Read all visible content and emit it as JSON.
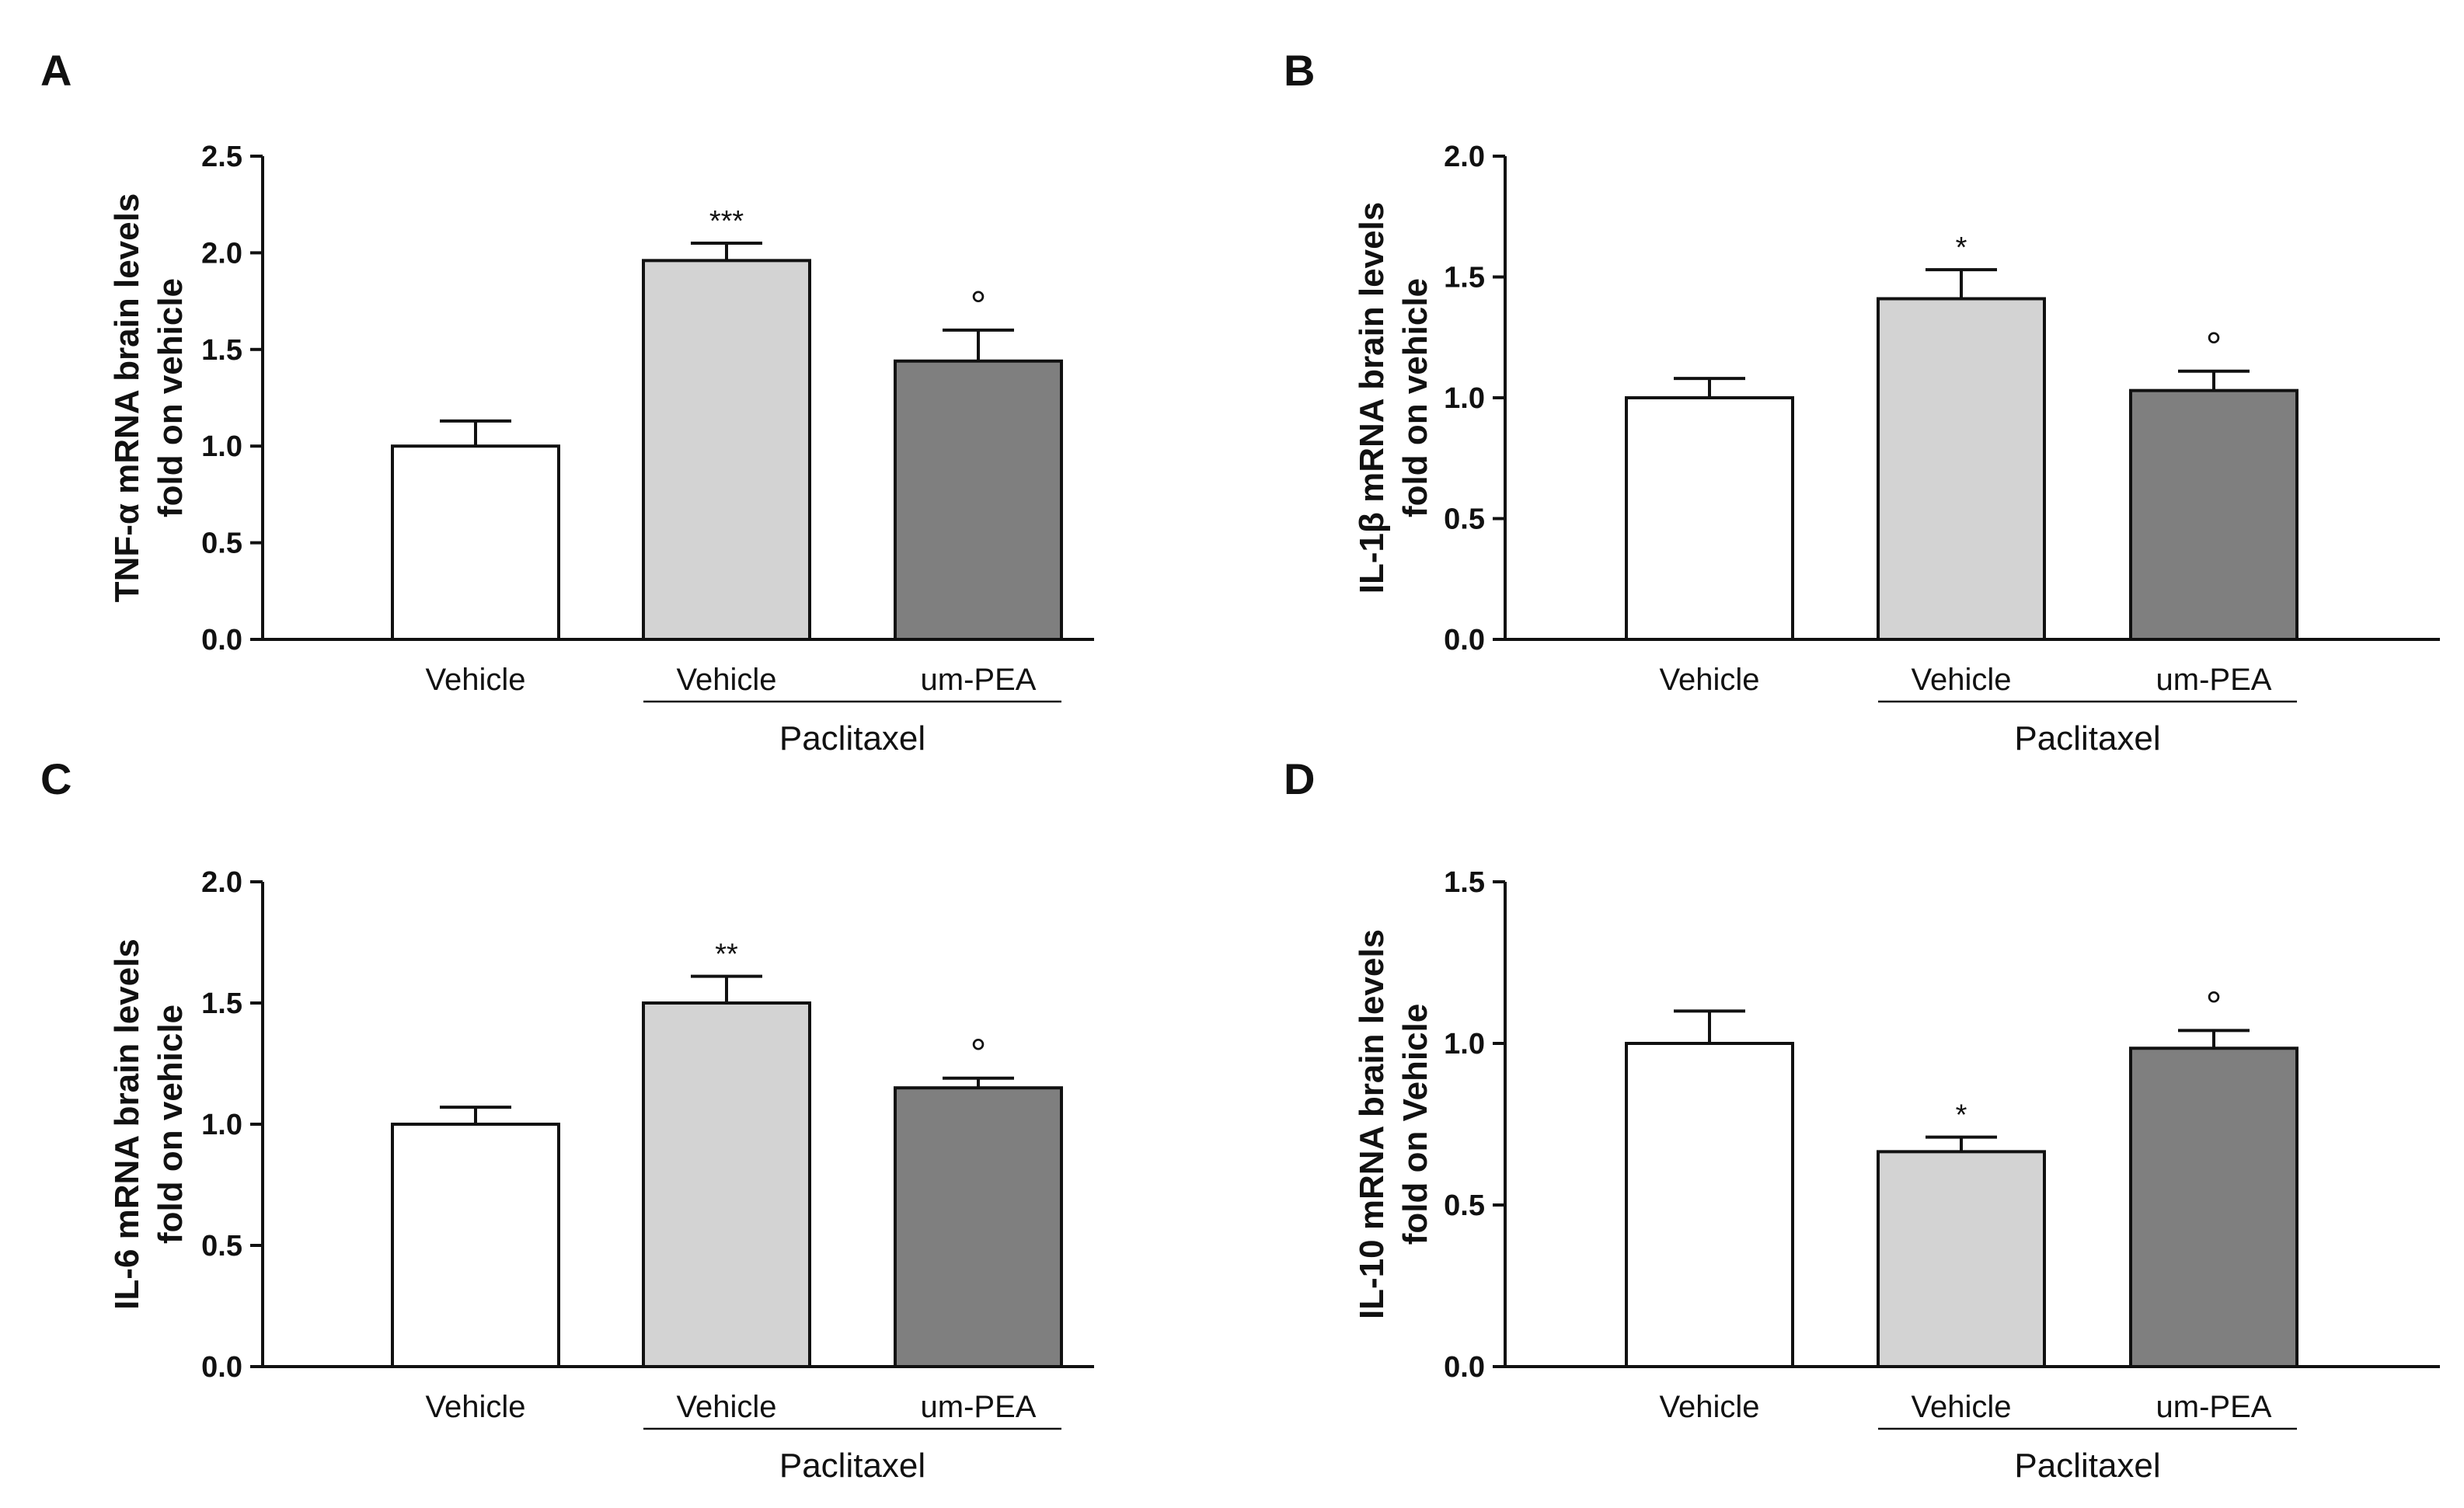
{
  "chart_data": [
    {
      "panel": "A",
      "type": "bar",
      "ylabel": [
        "TNF-α mRNA brain levels",
        "fold on vehicle"
      ],
      "ylim": [
        0,
        2.5
      ],
      "yticks": [
        "0.0",
        "0.5",
        "1.0",
        "1.5",
        "2.0",
        "2.5"
      ],
      "categories": [
        "Vehicle",
        "Vehicle",
        "um-PEA"
      ],
      "values": [
        1.0,
        1.96,
        1.44
      ],
      "errors": [
        0.13,
        0.09,
        0.16
      ],
      "significance": [
        "",
        "***",
        "°"
      ],
      "group_label": "Paclitaxel",
      "colors": [
        "#ffffff",
        "#d3d3d3",
        "#7f7f7f"
      ]
    },
    {
      "panel": "B",
      "type": "bar",
      "ylabel": [
        "IL-1β mRNA brain levels",
        "fold on vehicle"
      ],
      "ylim": [
        0,
        2.0
      ],
      "yticks": [
        "0.0",
        "0.5",
        "1.0",
        "1.5",
        "2.0"
      ],
      "categories": [
        "Vehicle",
        "Vehicle",
        "um-PEA"
      ],
      "values": [
        1.0,
        1.41,
        1.03
      ],
      "errors": [
        0.08,
        0.12,
        0.08
      ],
      "significance": [
        "",
        "*",
        "°"
      ],
      "group_label": "Paclitaxel",
      "colors": [
        "#ffffff",
        "#d3d3d3",
        "#7f7f7f"
      ]
    },
    {
      "panel": "C",
      "type": "bar",
      "ylabel": [
        "IL-6 mRNA brain levels",
        "fold on vehicle"
      ],
      "ylim": [
        0,
        2.0
      ],
      "yticks": [
        "0.0",
        "0.5",
        "1.0",
        "1.5",
        "2.0"
      ],
      "categories": [
        "Vehicle",
        "Vehicle",
        "um-PEA"
      ],
      "values": [
        1.0,
        1.5,
        1.15
      ],
      "errors": [
        0.07,
        0.11,
        0.04
      ],
      "significance": [
        "",
        "**",
        "°"
      ],
      "group_label": "Paclitaxel",
      "colors": [
        "#ffffff",
        "#d3d3d3",
        "#7f7f7f"
      ]
    },
    {
      "panel": "D",
      "type": "bar",
      "ylabel": [
        "IL-10 mRNA brain levels",
        "fold on Vehicle"
      ],
      "ylim": [
        0,
        1.5
      ],
      "yticks": [
        "0.0",
        "0.5",
        "1.0",
        "1.5"
      ],
      "categories": [
        "Vehicle",
        "Vehicle",
        "um-PEA"
      ],
      "values": [
        1.0,
        0.665,
        0.985
      ],
      "errors": [
        0.1,
        0.045,
        0.055
      ],
      "significance": [
        "",
        "*",
        "°"
      ],
      "group_label": "Paclitaxel",
      "colors": [
        "#ffffff",
        "#d3d3d3",
        "#7f7f7f"
      ]
    }
  ]
}
